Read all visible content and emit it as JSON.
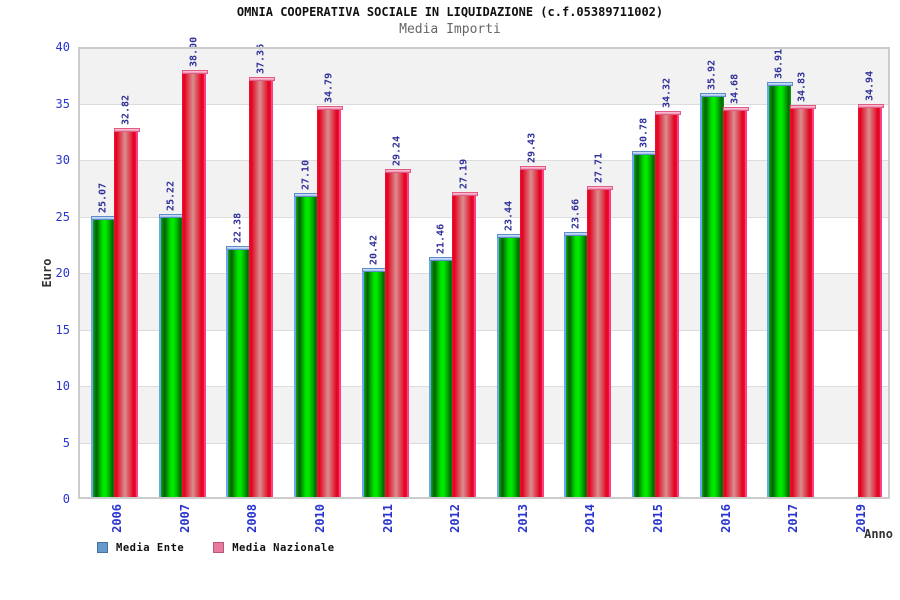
{
  "chart_data": {
    "type": "bar",
    "title": "OMNIA COOPERATIVA SOCIALE IN LIQUIDAZIONE (c.f.05389711002)",
    "subtitle": "Media Importi",
    "xlabel": "Anno",
    "ylabel": "Euro",
    "ylim": [
      0,
      40
    ],
    "ytick_step": 5,
    "grid": "horizontal-bands-alternating",
    "legend_position": "bottom-left",
    "categories": [
      "2006",
      "2007",
      "2008",
      "2010",
      "2011",
      "2012",
      "2013",
      "2014",
      "2015",
      "2016",
      "2017",
      "2019"
    ],
    "series": [
      {
        "name": "Media Ente",
        "values": [
          25.07,
          25.22,
          22.38,
          27.1,
          20.42,
          21.46,
          23.44,
          23.66,
          30.78,
          35.92,
          36.91,
          null
        ]
      },
      {
        "name": "Media Nazionale",
        "values": [
          32.82,
          38.0,
          37.36,
          34.79,
          29.24,
          27.19,
          29.43,
          27.71,
          34.32,
          34.68,
          34.83,
          34.94
        ]
      }
    ],
    "legend": [
      {
        "label": "Media Ente",
        "swatch_color": "#6699cc"
      },
      {
        "label": "Media Nazionale",
        "swatch_color": "#e87a9e"
      }
    ],
    "colors": {
      "media_ente_bar_center": "#00ee00",
      "media_ente_bar_edge": "#046104",
      "media_ente_cap": "#9cbeef",
      "media_nazionale_bar_center": "#d98f8f",
      "media_nazionale_bar_edge": "#e3001e",
      "media_nazionale_cap": "#ef90ae",
      "value_label_text": "#30309a",
      "axis_tick_text": "#2a35cf",
      "axis_title_text": "#333333",
      "band_gray": "#f2f2f2",
      "plot_border": "#cccccc",
      "subtitle_text": "#666666"
    }
  }
}
